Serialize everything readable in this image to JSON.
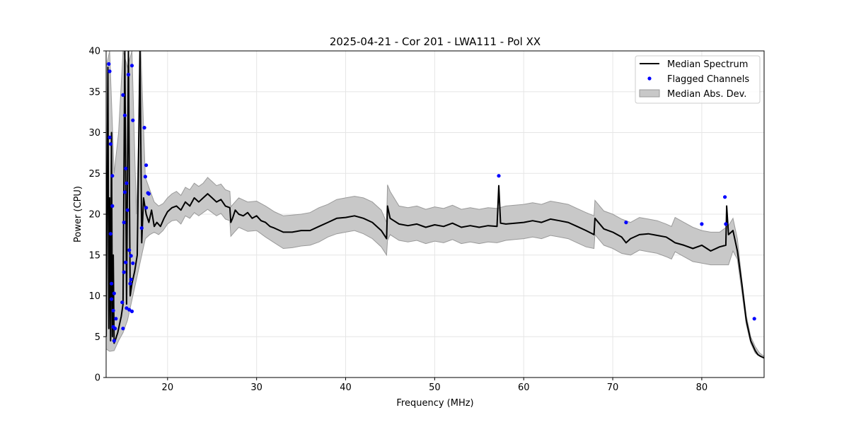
{
  "chart_data": {
    "type": "line",
    "title": "2025-04-21 - Cor 201 - LWA111 - Pol XX",
    "xlabel": "Frequency (MHz)",
    "ylabel": "Power (CPU)",
    "xlim": [
      13.1,
      87.0
    ],
    "ylim": [
      0,
      40
    ],
    "grid": true,
    "legend_position": "top-right",
    "x_ticks": [
      20,
      30,
      40,
      50,
      60,
      70,
      80
    ],
    "y_ticks": [
      0,
      5,
      10,
      15,
      20,
      25,
      30,
      35,
      40
    ],
    "legend": [
      "Median Spectrum",
      "Flagged Channels",
      "Median Abs. Dev."
    ],
    "colors": {
      "median": "#000000",
      "flagged": "#0000ff",
      "mad_fill": "#c8c8c8",
      "mad_edge": "#9a9a9a",
      "grid": "#e6e6e6"
    },
    "series": [
      {
        "name": "Median Spectrum",
        "x": [
          13.1,
          13.3,
          13.4,
          13.5,
          13.6,
          13.7,
          13.8,
          13.9,
          14.0,
          14.2,
          14.4,
          14.6,
          14.8,
          15.0,
          15.2,
          15.4,
          15.6,
          15.8,
          16.0,
          16.3,
          16.6,
          16.9,
          17.1,
          17.3,
          17.6,
          17.9,
          18.2,
          18.5,
          18.8,
          19.2,
          19.6,
          20.0,
          20.5,
          21.0,
          21.5,
          22.0,
          22.5,
          23.0,
          23.5,
          24.0,
          24.5,
          25.0,
          25.5,
          26.0,
          26.5,
          27.0,
          27.1,
          27.3,
          27.6,
          28.0,
          28.5,
          29.0,
          29.5,
          30.0,
          30.5,
          31.0,
          31.5,
          32.0,
          33.0,
          34.0,
          35.0,
          36.0,
          37.0,
          38.0,
          39.0,
          40.0,
          41.0,
          42.0,
          43.0,
          44.0,
          44.6,
          44.7,
          45.0,
          46.0,
          47.0,
          48.0,
          49.0,
          50.0,
          51.0,
          52.0,
          53.0,
          54.0,
          55.0,
          56.0,
          57.0,
          57.2,
          57.4,
          58.0,
          59.0,
          60.0,
          61.0,
          62.0,
          63.0,
          64.0,
          65.0,
          66.0,
          67.0,
          67.9,
          68.0,
          69.0,
          70.0,
          71.0,
          71.5,
          72.0,
          73.0,
          74.0,
          75.0,
          76.0,
          76.6,
          77.0,
          78.0,
          79.0,
          80.0,
          81.0,
          82.0,
          82.7,
          82.8,
          83.0,
          83.5,
          84.0,
          84.5,
          85.0,
          85.5,
          86.0,
          86.3,
          86.6,
          87.0
        ],
        "y": [
          5.0,
          38.0,
          6.0,
          22.0,
          4.5,
          30.0,
          5.0,
          15.0,
          4.2,
          4.8,
          5.5,
          6.5,
          7.5,
          9.0,
          40.0,
          9.0,
          40.0,
          10.0,
          11.5,
          13.0,
          15.0,
          40.0,
          16.5,
          22.0,
          20.0,
          19.0,
          20.5,
          18.5,
          19.0,
          18.5,
          19.5,
          20.3,
          20.8,
          21.0,
          20.5,
          21.5,
          21.0,
          22.0,
          21.5,
          22.0,
          22.5,
          22.0,
          21.5,
          21.8,
          21.0,
          20.8,
          19.0,
          19.5,
          20.5,
          20.0,
          19.8,
          20.2,
          19.5,
          19.8,
          19.2,
          19.0,
          18.5,
          18.3,
          17.8,
          17.8,
          18.0,
          18.0,
          18.5,
          19.0,
          19.5,
          19.6,
          19.8,
          19.5,
          19.0,
          18.0,
          17.0,
          21.0,
          19.5,
          18.8,
          18.6,
          18.8,
          18.4,
          18.7,
          18.5,
          18.9,
          18.4,
          18.6,
          18.4,
          18.6,
          18.5,
          23.5,
          18.9,
          18.8,
          18.9,
          19.0,
          19.2,
          19.0,
          19.4,
          19.2,
          19.0,
          18.5,
          18.0,
          17.5,
          19.5,
          18.2,
          17.8,
          17.2,
          16.5,
          17.0,
          17.5,
          17.6,
          17.4,
          17.2,
          16.8,
          16.5,
          16.2,
          15.8,
          16.2,
          15.5,
          16.0,
          16.2,
          21.0,
          17.5,
          18.0,
          15.5,
          11.5,
          7.0,
          4.5,
          3.3,
          2.8,
          2.6,
          2.4
        ]
      },
      {
        "name": "Median Abs. Dev.",
        "x": [
          13.1,
          13.5,
          14.0,
          14.5,
          15.0,
          15.5,
          16.0,
          16.5,
          17.0,
          17.5,
          18.0,
          18.5,
          19.0,
          19.5,
          20.0,
          20.5,
          21.0,
          21.5,
          22.0,
          22.5,
          23.0,
          23.5,
          24.0,
          24.5,
          25.0,
          25.5,
          26.0,
          26.5,
          27.0,
          27.1,
          27.5,
          28.0,
          29.0,
          30.0,
          31.0,
          32.0,
          33.0,
          34.0,
          35.0,
          36.0,
          37.0,
          38.0,
          39.0,
          40.0,
          41.0,
          42.0,
          43.0,
          44.0,
          44.6,
          44.7,
          45.0,
          46.0,
          47.0,
          48.0,
          49.0,
          50.0,
          51.0,
          52.0,
          53.0,
          54.0,
          55.0,
          56.0,
          57.0,
          58.0,
          59.0,
          60.0,
          61.0,
          62.0,
          63.0,
          64.0,
          65.0,
          66.0,
          67.0,
          67.9,
          68.0,
          69.0,
          70.0,
          71.0,
          72.0,
          73.0,
          74.0,
          75.0,
          76.0,
          76.6,
          77.0,
          78.0,
          79.0,
          80.0,
          81.0,
          82.0,
          83.0,
          83.5,
          84.0,
          84.5,
          85.0,
          85.5,
          86.0,
          86.5,
          87.0
        ],
        "lower": [
          3.5,
          3.2,
          3.3,
          4.5,
          5.5,
          7.0,
          9.5,
          12.0,
          14.5,
          17.0,
          17.5,
          17.8,
          17.5,
          18.0,
          18.8,
          19.2,
          19.3,
          18.8,
          19.8,
          19.5,
          20.2,
          19.8,
          20.2,
          20.6,
          20.2,
          19.8,
          20.1,
          19.4,
          19.2,
          17.3,
          17.8,
          18.4,
          17.9,
          18.0,
          17.2,
          16.5,
          15.8,
          15.9,
          16.1,
          16.2,
          16.6,
          17.2,
          17.6,
          17.8,
          18.0,
          17.6,
          17.0,
          16.0,
          15.0,
          16.8,
          17.5,
          16.8,
          16.6,
          16.8,
          16.4,
          16.7,
          16.5,
          16.9,
          16.4,
          16.6,
          16.4,
          16.6,
          16.5,
          16.8,
          16.9,
          17.0,
          17.2,
          17.0,
          17.4,
          17.2,
          17.0,
          16.5,
          16.0,
          15.8,
          17.5,
          16.2,
          15.8,
          15.2,
          15.0,
          15.6,
          15.4,
          15.2,
          14.8,
          14.5,
          15.4,
          14.8,
          14.2,
          14.0,
          13.8,
          13.8,
          13.8,
          15.5,
          14.5,
          10.5,
          6.5,
          4.2,
          3.0,
          2.6,
          2.4
        ],
        "upper": [
          38.0,
          40.0,
          25.0,
          30.0,
          40.0,
          38.0,
          40.0,
          20.0,
          40.0,
          24.5,
          23.0,
          21.5,
          21.0,
          21.3,
          22.0,
          22.5,
          22.8,
          22.3,
          23.3,
          23.0,
          23.8,
          23.4,
          23.8,
          24.5,
          24.0,
          23.5,
          23.7,
          23.0,
          22.8,
          20.9,
          21.4,
          22.0,
          21.5,
          21.6,
          21.0,
          20.3,
          19.8,
          19.9,
          20.0,
          20.2,
          20.8,
          21.2,
          21.8,
          22.0,
          22.2,
          22.0,
          21.5,
          20.5,
          19.0,
          23.6,
          22.8,
          21.0,
          20.8,
          21.0,
          20.6,
          20.9,
          20.7,
          21.1,
          20.6,
          20.8,
          20.6,
          20.8,
          20.7,
          21.0,
          21.1,
          21.2,
          21.4,
          21.2,
          21.6,
          21.4,
          21.2,
          20.7,
          20.2,
          19.8,
          21.7,
          20.4,
          20.0,
          19.4,
          19.0,
          19.6,
          19.4,
          19.2,
          18.8,
          18.5,
          19.6,
          19.0,
          18.4,
          18.0,
          17.8,
          17.8,
          18.6,
          19.5,
          17.0,
          12.0,
          7.6,
          5.0,
          3.8,
          3.0,
          2.6
        ]
      },
      {
        "name": "Flagged Channels",
        "x": [
          13.4,
          13.5,
          13.5,
          13.6,
          13.6,
          13.7,
          13.7,
          13.8,
          13.8,
          13.9,
          13.9,
          14.0,
          14.0,
          14.1,
          14.2,
          14.9,
          15.0,
          15.0,
          15.1,
          15.1,
          15.2,
          15.2,
          15.3,
          15.3,
          15.4,
          15.4,
          15.5,
          15.6,
          15.7,
          15.7,
          15.8,
          15.9,
          15.9,
          16.0,
          16.0,
          16.1,
          16.1,
          17.1,
          17.4,
          17.5,
          17.6,
          17.8,
          17.9,
          17.6,
          57.2,
          71.5,
          80.0,
          82.6,
          82.7,
          85.9
        ],
        "y": [
          38.4,
          37.5,
          29.4,
          28.6,
          17.6,
          11.5,
          9.6,
          24.7,
          21.0,
          8.2,
          6.2,
          4.5,
          10.3,
          6.0,
          7.2,
          9.2,
          34.6,
          6.0,
          12.9,
          19.0,
          22.7,
          32.1,
          25.6,
          14.1,
          23.8,
          8.5,
          20.5,
          37.1,
          15.6,
          8.3,
          11.5,
          12.0,
          14.9,
          38.2,
          8.1,
          31.5,
          14.0,
          18.3,
          30.6,
          24.6,
          20.8,
          22.6,
          22.5,
          26.0,
          24.7,
          19.0,
          18.8,
          22.1,
          18.8,
          7.2
        ]
      }
    ]
  }
}
